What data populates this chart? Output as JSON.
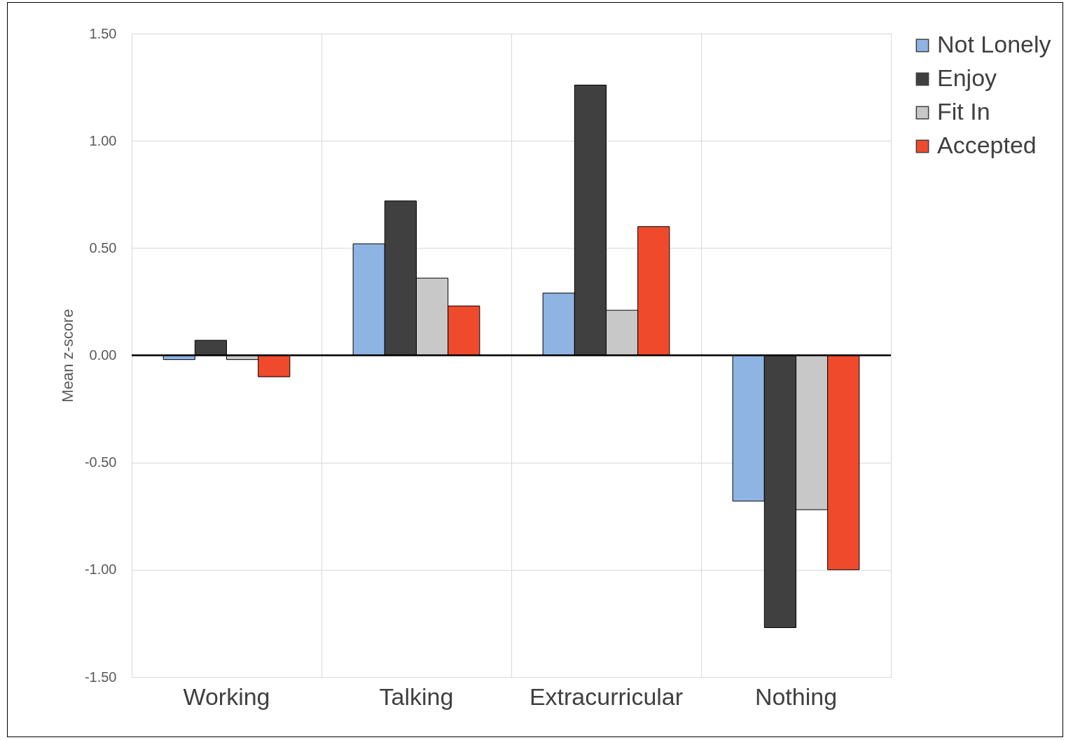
{
  "chart_data": {
    "type": "bar",
    "ylabel": "Mean z-score",
    "categories": [
      "Working",
      "Talking",
      "Extracurricular",
      "Nothing"
    ],
    "series": [
      {
        "name": "Not Lonely",
        "color": "#8eb4e3",
        "values": [
          -0.02,
          0.52,
          0.29,
          -0.68
        ]
      },
      {
        "name": "Enjoy",
        "color": "#404040",
        "values": [
          0.07,
          0.72,
          1.26,
          -1.27
        ]
      },
      {
        "name": "Fit In",
        "color": "#c8c8c8",
        "values": [
          -0.02,
          0.36,
          0.21,
          -0.72
        ]
      },
      {
        "name": "Accepted",
        "color": "#f04a2c",
        "values": [
          -0.1,
          0.23,
          0.6,
          -1.0
        ]
      }
    ],
    "ylim": [
      -1.5,
      1.5
    ],
    "yticks": [
      {
        "value": -1.5,
        "label": "-1.50"
      },
      {
        "value": -1,
        "label": "-1.00"
      },
      {
        "value": -0.5,
        "label": "-0.50"
      },
      {
        "value": 0,
        "label": "0.00"
      },
      {
        "value": 0.5,
        "label": "0.50"
      },
      {
        "value": 1,
        "label": "1.00"
      },
      {
        "value": 1.5,
        "label": "1.50"
      }
    ],
    "ref_lines": [
      {
        "axis": "y",
        "value": 0,
        "color": "#000000"
      }
    ],
    "grid": true,
    "legend": "top right"
  }
}
